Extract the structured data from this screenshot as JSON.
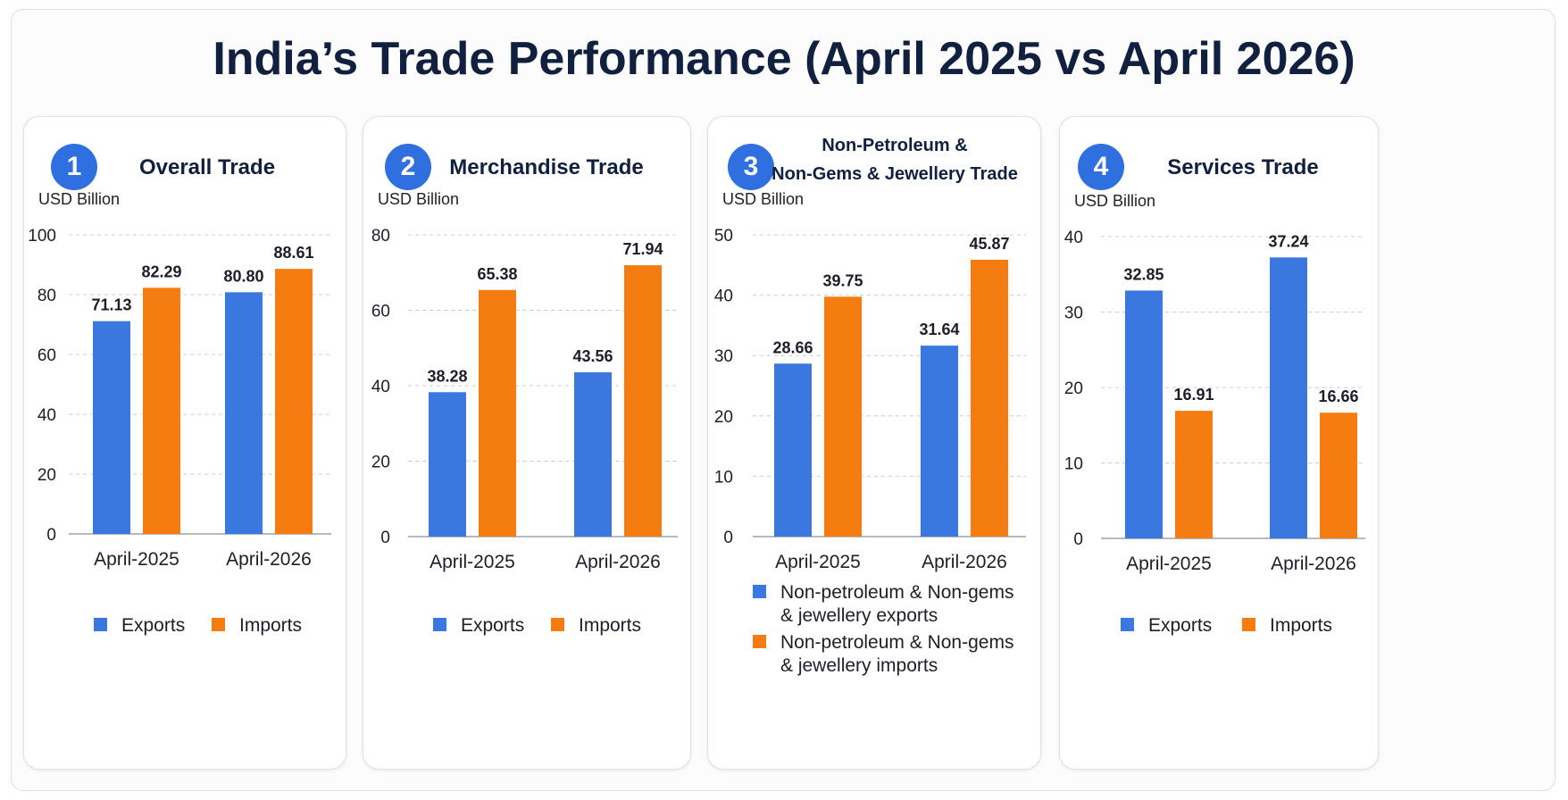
{
  "title": "India’s Trade Performance (April 2025 vs April 2026)",
  "colors": {
    "exports": "#3a78e0",
    "imports": "#f57c10",
    "badge": "#2f6fe0"
  },
  "panels": [
    {
      "number": "1",
      "title": "Overall Trade",
      "unit": "USD Billion",
      "legend": {
        "exports": "Exports",
        "imports": "Imports"
      }
    },
    {
      "number": "2",
      "title": "Merchandise Trade",
      "unit": "USD Billion",
      "legend": {
        "exports": "Exports",
        "imports": "Imports"
      }
    },
    {
      "number": "3",
      "title_line1": "Non-Petroleum &",
      "title_line2": "Non-Gems & Jewellery Trade",
      "unit": "USD Billion",
      "legend": {
        "exports_line1": "Non-petroleum & Non-gems",
        "exports_line2": "& jewellery exports",
        "imports_line1": "Non-petroleum & Non-gems",
        "imports_line2": "& jewellery imports"
      }
    },
    {
      "number": "4",
      "title": "Services Trade",
      "unit": "USD Billion",
      "legend": {
        "exports": "Exports",
        "imports": "Imports"
      }
    }
  ],
  "chart_data": [
    {
      "type": "bar",
      "title": "Overall Trade",
      "ylabel": "USD Billion",
      "categories": [
        "April-2025",
        "April-2026"
      ],
      "series": [
        {
          "name": "Exports",
          "values": [
            71.13,
            80.8
          ]
        },
        {
          "name": "Imports",
          "values": [
            82.29,
            88.61
          ]
        }
      ],
      "value_labels": [
        [
          "71.13",
          "80.80"
        ],
        [
          "82.29",
          "88.61"
        ]
      ],
      "ylim": [
        0,
        100
      ],
      "yticks": [
        0,
        20,
        40,
        60,
        80,
        100
      ],
      "grid": true,
      "legend": "bottom"
    },
    {
      "type": "bar",
      "title": "Merchandise Trade",
      "ylabel": "USD Billion",
      "categories": [
        "April-2025",
        "April-2026"
      ],
      "series": [
        {
          "name": "Exports",
          "values": [
            38.28,
            43.56
          ]
        },
        {
          "name": "Imports",
          "values": [
            65.38,
            71.94
          ]
        }
      ],
      "value_labels": [
        [
          "38.28",
          "43.56"
        ],
        [
          "65.38",
          "71.94"
        ]
      ],
      "ylim": [
        0,
        80
      ],
      "yticks": [
        0,
        20,
        40,
        60,
        80
      ],
      "grid": true,
      "legend": "bottom"
    },
    {
      "type": "bar",
      "title": "Non-Petroleum & Non-Gems & Jewellery Trade",
      "ylabel": "USD Billion",
      "categories": [
        "April-2025",
        "April-2026"
      ],
      "series": [
        {
          "name": "Non-petroleum & Non-gems & jewellery exports",
          "values": [
            28.66,
            31.64
          ]
        },
        {
          "name": "Non-petroleum & Non-gems & jewellery imports",
          "values": [
            39.75,
            45.87
          ]
        }
      ],
      "value_labels": [
        [
          "28.66",
          "31.64"
        ],
        [
          "39.75",
          "45.87"
        ]
      ],
      "ylim": [
        0,
        50
      ],
      "yticks": [
        0,
        10,
        20,
        30,
        40,
        50
      ],
      "grid": true,
      "legend": "bottom"
    },
    {
      "type": "bar",
      "title": "Services Trade",
      "ylabel": "USD Billion",
      "categories": [
        "April-2025",
        "April-2026"
      ],
      "series": [
        {
          "name": "Exports",
          "values": [
            32.85,
            37.24
          ]
        },
        {
          "name": "Imports",
          "values": [
            16.91,
            16.66
          ]
        }
      ],
      "value_labels": [
        [
          "32.85",
          "37.24"
        ],
        [
          "16.91",
          "16.66"
        ]
      ],
      "ylim": [
        0,
        40
      ],
      "yticks": [
        0,
        10,
        20,
        30,
        40
      ],
      "grid": true,
      "legend": "bottom"
    }
  ]
}
